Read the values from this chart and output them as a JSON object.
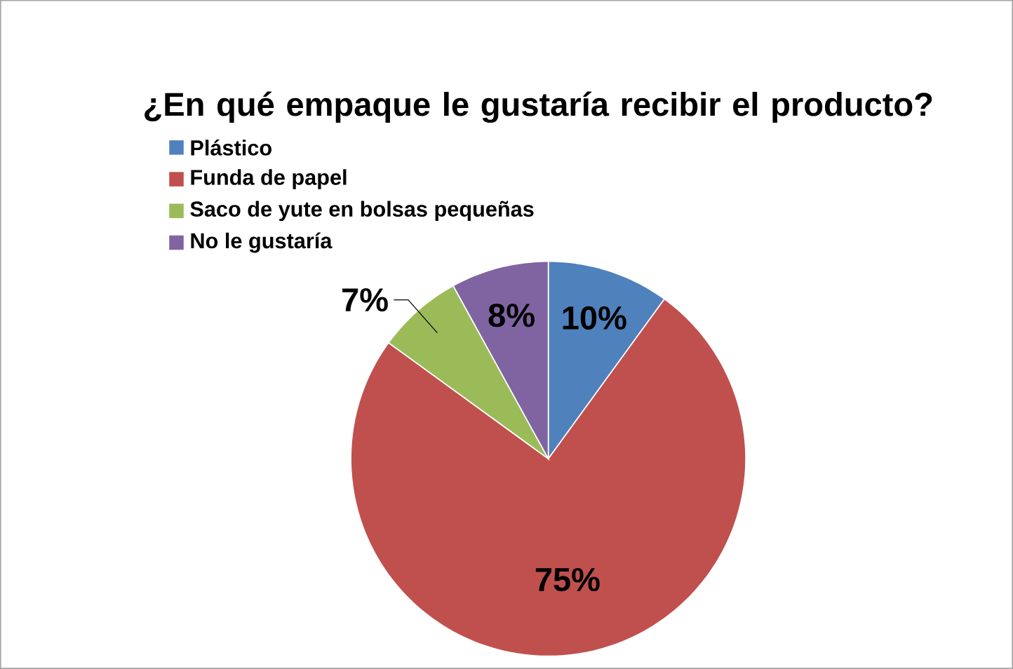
{
  "chart_data": {
    "type": "pie",
    "title": "¿En qué empaque le gustaría recibir el producto?",
    "categories": [
      "Plástico",
      "Funda de papel",
      "Saco de yute en bolsas pequeñas",
      "No le gustaría"
    ],
    "values": [
      10,
      75,
      7,
      8
    ],
    "value_labels": [
      "10%",
      "75%",
      "7%",
      "8%"
    ],
    "colors": [
      "#4f81bd",
      "#c0504d",
      "#9bbb59",
      "#8064a2"
    ],
    "legend": "top left"
  }
}
